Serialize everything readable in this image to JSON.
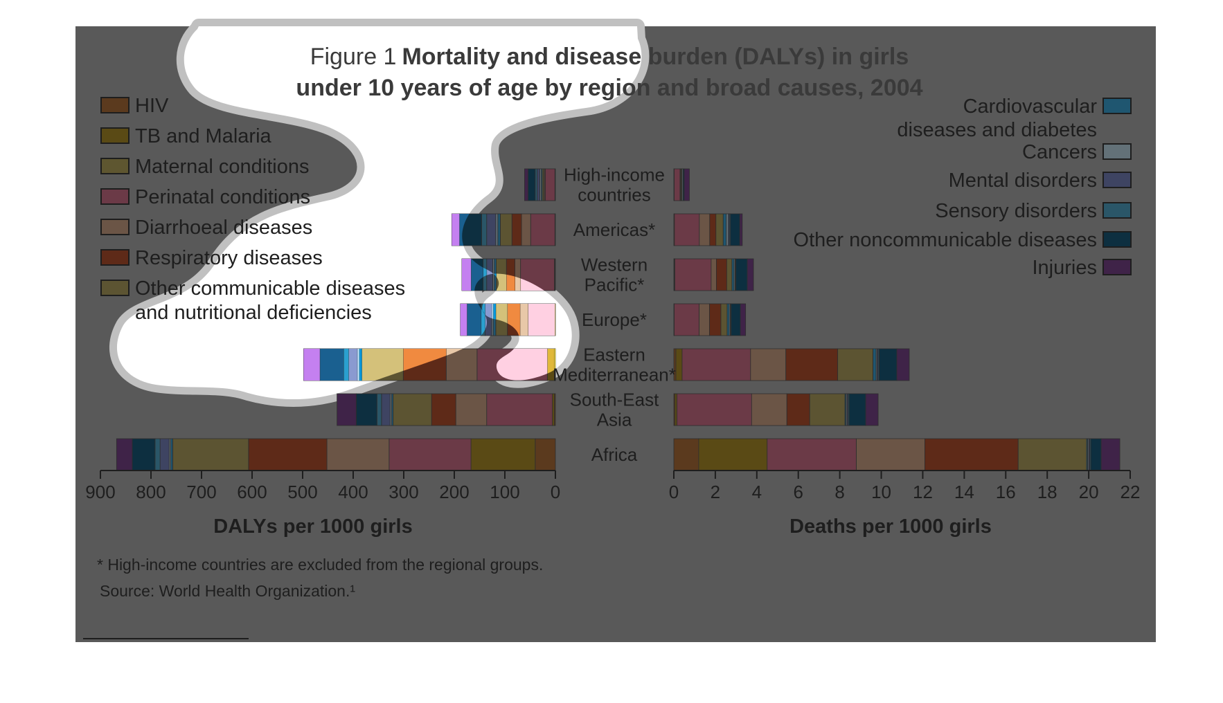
{
  "figure": {
    "title_prefix": "Figure 1",
    "title_line1_bold": "Mortality and disease burden (DALYs) in girls",
    "title_line2_bold": "under 10 years of age by region and broad causes, 2004",
    "footnote": "* High-income countries are excluded from the regional groups.",
    "source": "Source: World Health Organization.¹",
    "background_color": "#595959",
    "blob_overlay_color": "#ffffff",
    "blob_outline_color": "#c0c0c0"
  },
  "chart_data": [
    {
      "type": "bar",
      "orientation": "horizontal-stacked",
      "direction": "leftward",
      "xlabel": "DALYs per 1000 girls",
      "xlim": [
        0,
        900
      ],
      "xticks": [
        "900",
        "800",
        "700",
        "600",
        "500",
        "400",
        "300",
        "200",
        "100",
        "0"
      ],
      "categories": [
        "High-income countries",
        "Americas*",
        "Western Pacific*",
        "Europe*",
        "Eastern Mediterranean*",
        "South-East Asia",
        "Africa"
      ],
      "category_labels": [
        [
          "High-income",
          "countries"
        ],
        [
          "Americas*"
        ],
        [
          "Western",
          "Pacific*"
        ],
        [
          "Europe*"
        ],
        [
          "Eastern",
          "Mediterranean*"
        ],
        [
          "South-East",
          "Asia"
        ],
        [
          "Africa"
        ]
      ],
      "series": [
        {
          "name": "HIV",
          "values": [
            1,
            1,
            1,
            1,
            2,
            2,
            40
          ]
        },
        {
          "name": "TB and Malaria",
          "values": [
            0,
            0,
            1,
            0,
            14,
            4,
            127
          ]
        },
        {
          "name": "Maternal conditions",
          "values": [
            0,
            0,
            0,
            0,
            0,
            0,
            0
          ]
        },
        {
          "name": "Perinatal conditions",
          "values": [
            19,
            48,
            67,
            53,
            139,
            130,
            162
          ]
        },
        {
          "name": "Diarrhoeal diseases",
          "values": [
            2,
            18,
            11,
            16,
            61,
            61,
            123
          ]
        },
        {
          "name": "Respiratory diseases",
          "values": [
            1,
            19,
            17,
            25,
            85,
            48,
            155
          ]
        },
        {
          "name": "Other communicable diseases and nutritional deficiencies",
          "values": [
            3,
            23,
            20,
            23,
            82,
            76,
            150
          ]
        },
        {
          "name": "Cardiovascular diseases and diabetes",
          "values": [
            2,
            5,
            4,
            5,
            5,
            3,
            4
          ]
        },
        {
          "name": "Cancers",
          "values": [
            3,
            4,
            3,
            3,
            4,
            3,
            3
          ]
        },
        {
          "name": "Mental disorders",
          "values": [
            5,
            18,
            12,
            13,
            17,
            17,
            18
          ]
        },
        {
          "name": "Sensory disorders",
          "values": [
            4,
            10,
            7,
            8,
            10,
            9,
            10
          ]
        },
        {
          "name": "Other noncommunicable diseases",
          "values": [
            14,
            44,
            24,
            28,
            47,
            41,
            45
          ]
        },
        {
          "name": "Injuries",
          "values": [
            7,
            15,
            18,
            13,
            32,
            38,
            31
          ]
        }
      ]
    },
    {
      "type": "bar",
      "orientation": "horizontal-stacked",
      "direction": "rightward",
      "xlabel": "Deaths per 1000 girls",
      "xlim": [
        0,
        22
      ],
      "xticks": [
        "0",
        "2",
        "4",
        "6",
        "8",
        "10",
        "12",
        "14",
        "16",
        "18",
        "20",
        "22"
      ],
      "categories": [
        "High-income countries",
        "Americas*",
        "Western Pacific*",
        "Europe*",
        "Eastern Mediterranean*",
        "South-East Asia",
        "Africa"
      ],
      "series": [
        {
          "name": "HIV",
          "values": [
            0.02,
            0.03,
            0.02,
            0.02,
            0.1,
            0.05,
            1.2
          ]
        },
        {
          "name": "TB and Malaria",
          "values": [
            0,
            0,
            0.03,
            0,
            0.3,
            0.1,
            3.3
          ]
        },
        {
          "name": "Maternal conditions",
          "values": [
            0,
            0,
            0,
            0,
            0,
            0,
            0
          ]
        },
        {
          "name": "Perinatal conditions",
          "values": [
            0.28,
            1.2,
            1.75,
            1.2,
            3.3,
            3.6,
            4.3
          ]
        },
        {
          "name": "Diarrhoeal diseases",
          "values": [
            0.02,
            0.5,
            0.25,
            0.5,
            1.7,
            1.7,
            3.3
          ]
        },
        {
          "name": "Respiratory diseases",
          "values": [
            0.02,
            0.3,
            0.5,
            0.55,
            2.5,
            1.1,
            4.5
          ]
        },
        {
          "name": "Other communicable diseases and nutritional deficiencies",
          "values": [
            0.04,
            0.35,
            0.25,
            0.3,
            1.7,
            1.7,
            3.3
          ]
        },
        {
          "name": "Cardiovascular diseases and diabetes",
          "values": [
            0.02,
            0.15,
            0.1,
            0.1,
            0.15,
            0.05,
            0.05
          ]
        },
        {
          "name": "Cancers",
          "values": [
            0.05,
            0.1,
            0.05,
            0.05,
            0.05,
            0.05,
            0.05
          ]
        },
        {
          "name": "Mental disorders",
          "values": [
            0,
            0.05,
            0.02,
            0.02,
            0.05,
            0.05,
            0.05
          ]
        },
        {
          "name": "Sensory disorders",
          "values": [
            0,
            0.05,
            0.02,
            0.02,
            0.05,
            0.05,
            0.05
          ]
        },
        {
          "name": "Other noncommunicable diseases",
          "values": [
            0.05,
            0.45,
            0.55,
            0.45,
            0.85,
            0.8,
            0.5
          ]
        },
        {
          "name": "Injuries",
          "values": [
            0.25,
            0.12,
            0.3,
            0.25,
            0.6,
            0.6,
            0.9
          ]
        }
      ]
    }
  ],
  "legend": {
    "left": [
      {
        "lines": [
          "HIV"
        ],
        "color": "#5b3a1e"
      },
      {
        "lines": [
          "TB and Malaria"
        ],
        "color": "#5a4a15"
      },
      {
        "lines": [
          "Maternal conditions"
        ],
        "color": "#5e5630"
      },
      {
        "lines": [
          "Perinatal conditions"
        ],
        "color": "#6b3a47"
      },
      {
        "lines": [
          "Diarrhoeal diseases"
        ],
        "color": "#6b5546"
      },
      {
        "lines": [
          "Respiratory diseases"
        ],
        "color": "#5e2a18"
      },
      {
        "lines": [
          "Other communicable diseases",
          "and nutritional deficiencies"
        ],
        "color": "#5c5432"
      }
    ],
    "right": [
      {
        "lines": [
          "Cardiovascular",
          "diseases and diabetes"
        ],
        "color": "#1f5670"
      },
      {
        "lines": [
          "Cancers"
        ],
        "color": "#637178"
      },
      {
        "lines": [
          "Mental disorders"
        ],
        "color": "#3e4462"
      },
      {
        "lines": [
          "Sensory disorders"
        ],
        "color": "#2a5668"
      },
      {
        "lines": [
          "Other noncommunicable diseases"
        ],
        "color": "#0d2f40"
      },
      {
        "lines": [
          "Injuries"
        ],
        "color": "#3f2348"
      }
    ]
  },
  "blob_colors": {
    "HIV": "#ffe838",
    "TB and Malaria": "#e0b83a",
    "Maternal conditions": "#ffe8a8",
    "Perinatal conditions": "#ffd0e2",
    "Diarrhoeal diseases": "#e8c8a8",
    "Respiratory diseases": "#f08a40",
    "Other communicable diseases and nutritional deficiencies": "#d4c17a",
    "Cardiovascular diseases and diabetes": "#0099dd",
    "Cancers": "#b8e2ff",
    "Mental disorders": "#8a9ad0",
    "Sensory disorders": "#2aa0d0",
    "Other noncommunicable diseases": "#1a6090",
    "Injuries": "#c480f0"
  }
}
